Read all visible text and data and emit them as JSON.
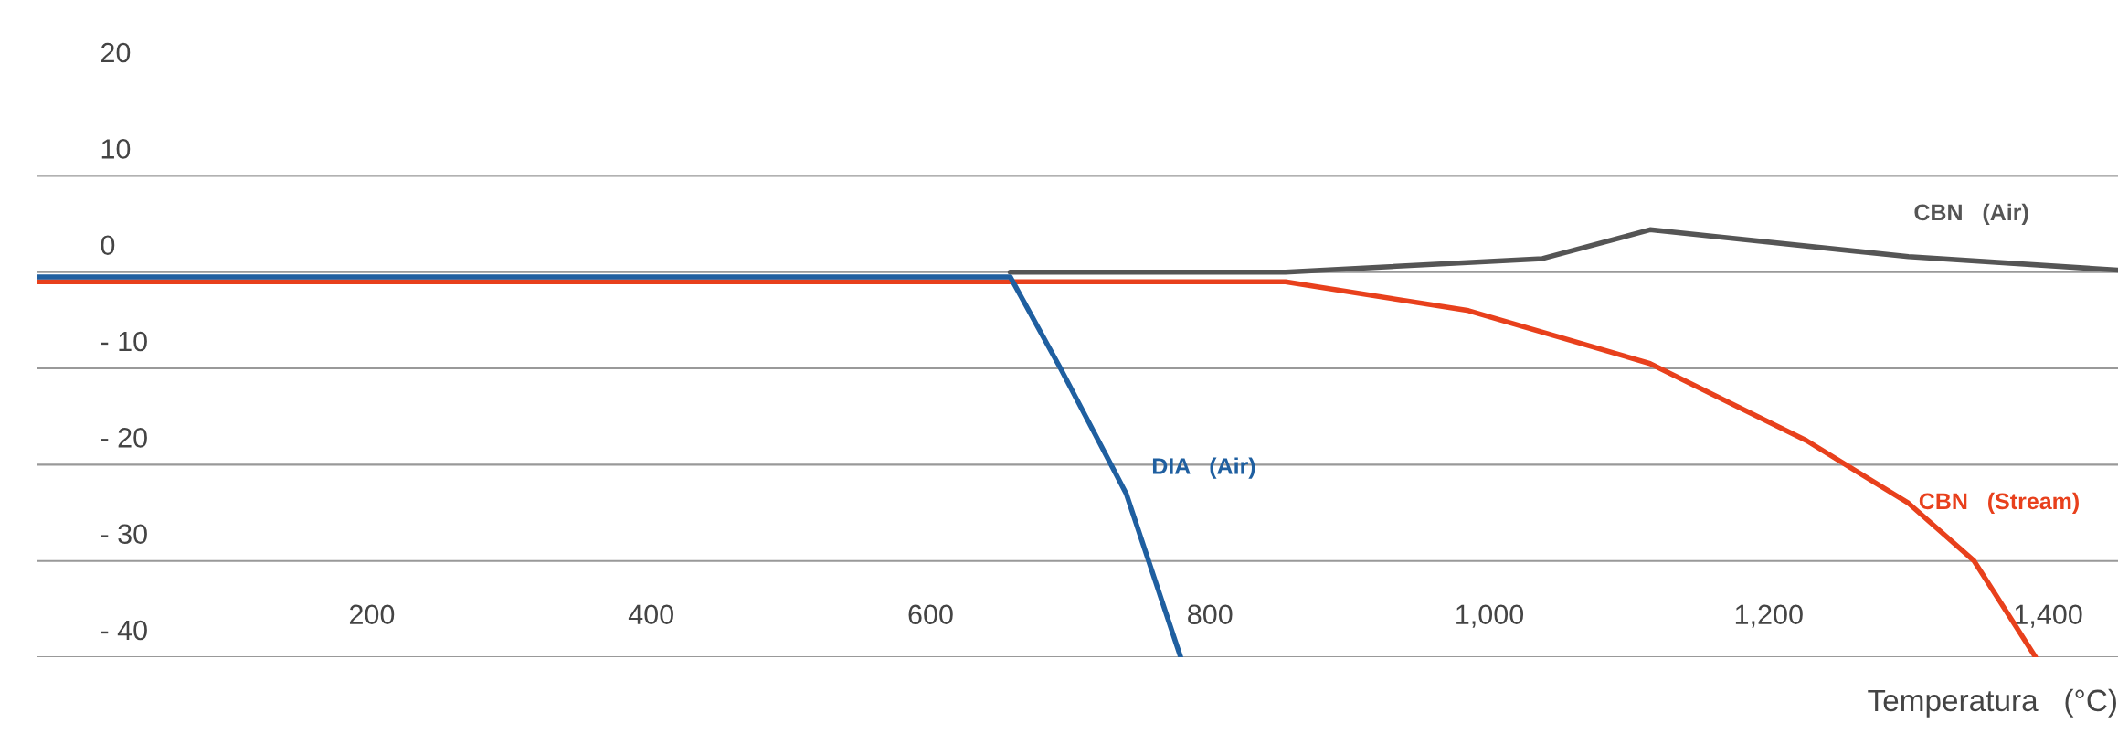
{
  "chart_data": {
    "type": "line",
    "xlabel": "Temperatura   (°C)",
    "xlim": [
      -40,
      1450
    ],
    "ylim": [
      -40,
      20
    ],
    "xticks": [
      {
        "value": 200,
        "label": "200"
      },
      {
        "value": 400,
        "label": "400"
      },
      {
        "value": 600,
        "label": "600"
      },
      {
        "value": 800,
        "label": "800"
      },
      {
        "value": 1000,
        "label": "1,000"
      },
      {
        "value": 1200,
        "label": "1,200"
      },
      {
        "value": 1400,
        "label": "1,400"
      }
    ],
    "yticks": [
      {
        "value": -40,
        "label": "- 40"
      },
      {
        "value": -30,
        "label": "- 30"
      },
      {
        "value": -20,
        "label": "- 20"
      },
      {
        "value": -10,
        "label": "- 10"
      },
      0,
      10,
      20
    ],
    "grid": "y",
    "marker": "none",
    "line_style": "solid",
    "legend": false,
    "series": [
      {
        "name": "CBN   (Air)",
        "color": "#555555",
        "x": [
          657,
          854,
          1038,
          1115,
          1300,
          1450
        ],
        "values": [
          0,
          0,
          1.4,
          4.4,
          1.6,
          0.2
        ]
      },
      {
        "name": "CBN   (Stream)",
        "color": "#e8401c",
        "x": [
          -40,
          854,
          985,
          1115,
          1227,
          1300,
          1347,
          1391
        ],
        "values": [
          -1,
          -1,
          -4,
          -9.5,
          -17.5,
          -24,
          -30,
          -40
        ]
      },
      {
        "name": "DIA   (Air)",
        "color": "#1f5fa0",
        "x": [
          -40,
          657,
          693,
          740,
          779
        ],
        "values": [
          -0.5,
          -0.5,
          -10,
          -23,
          -40
        ]
      }
    ]
  }
}
